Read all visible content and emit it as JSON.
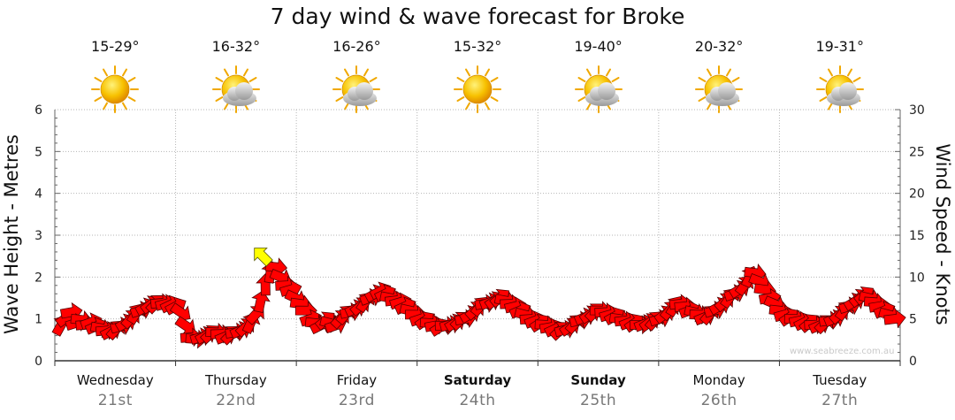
{
  "chart_data": {
    "type": "line",
    "title": "7 day wind & wave forecast for Broke",
    "left_axis": {
      "label": "Wave Height - Metres",
      "range": [
        0,
        6
      ],
      "ticks": [
        0,
        1,
        2,
        3,
        4,
        5,
        6
      ]
    },
    "right_axis": {
      "label": "Wind Speed - Knots",
      "range": [
        0,
        30
      ],
      "ticks": [
        0,
        5,
        10,
        15,
        20,
        25,
        30
      ]
    },
    "grid": true,
    "days": [
      {
        "day": "Wednesday",
        "date": "21st",
        "temp": "15-29°",
        "icon": "sun-icon",
        "bold": false
      },
      {
        "day": "Thursday",
        "date": "22nd",
        "temp": "16-32°",
        "icon": "sun-cloud-icon",
        "bold": false
      },
      {
        "day": "Friday",
        "date": "23rd",
        "temp": "16-26°",
        "icon": "sun-cloud-icon",
        "bold": false
      },
      {
        "day": "Saturday",
        "date": "24th",
        "temp": "15-32°",
        "icon": "sun-icon",
        "bold": true
      },
      {
        "day": "Sunday",
        "date": "25th",
        "temp": "19-40°",
        "icon": "sun-cloud-icon",
        "bold": true
      },
      {
        "day": "Monday",
        "date": "26th",
        "temp": "20-32°",
        "icon": "sun-cloud-icon",
        "bold": false
      },
      {
        "day": "Tuesday",
        "date": "27th",
        "temp": "19-31°",
        "icon": "sun-cloud-icon",
        "bold": false
      }
    ],
    "series": [
      {
        "name": "Wind Speed",
        "unit": "knots",
        "points_per_day": 24,
        "values": [
          4.2,
          5.1,
          5.8,
          4.5,
          4.9,
          4.3,
          4.6,
          4.1,
          3.9,
          3.6,
          3.5,
          3.7,
          4.1,
          4.5,
          5.0,
          5.6,
          6.0,
          6.4,
          6.7,
          6.8,
          6.9,
          6.8,
          6.7,
          6.5,
          5.8,
          4.2,
          2.8,
          2.6,
          2.8,
          3.0,
          3.2,
          3.4,
          3.2,
          2.9,
          3.1,
          3.4,
          3.6,
          4.0,
          4.5,
          5.5,
          7.0,
          9.0,
          10.5,
          11.2,
          10.0,
          9.0,
          8.5,
          7.5,
          6.8,
          6.0,
          5.0,
          4.5,
          4.2,
          4.8,
          4.5,
          4.2,
          5.0,
          5.5,
          5.8,
          6.2,
          6.5,
          7.0,
          7.5,
          8.0,
          8.3,
          8.0,
          7.5,
          7.2,
          7.0,
          6.5,
          6.0,
          5.5,
          5.0,
          4.8,
          4.5,
          4.2,
          4.0,
          4.2,
          4.3,
          4.5,
          4.8,
          5.0,
          5.5,
          6.0,
          6.5,
          6.8,
          7.0,
          7.2,
          7.5,
          7.2,
          6.8,
          6.5,
          6.0,
          5.5,
          5.0,
          4.8,
          4.5,
          4.3,
          4.0,
          3.8,
          3.6,
          3.7,
          4.0,
          4.4,
          4.8,
          5.2,
          5.5,
          5.8,
          6.0,
          5.8,
          5.5,
          5.3,
          5.0,
          4.8,
          4.6,
          4.5,
          4.3,
          4.4,
          4.6,
          4.8,
          5.0,
          5.5,
          6.0,
          6.5,
          6.8,
          6.5,
          6.0,
          5.8,
          5.5,
          5.2,
          5.5,
          6.0,
          6.5,
          7.0,
          7.5,
          8.0,
          8.5,
          9.0,
          10.0,
          10.5,
          9.5,
          8.5,
          7.5,
          6.8,
          6.0,
          5.5,
          5.2,
          5.0,
          4.8,
          4.6,
          4.5,
          4.3,
          4.2,
          4.4,
          4.8,
          5.0,
          5.5,
          6.0,
          6.5,
          7.0,
          7.5,
          7.8,
          7.5,
          7.0,
          6.5,
          6.0,
          5.5,
          5.0
        ],
        "color": "#ff0000"
      },
      {
        "name": "Wave Height",
        "unit": "metres",
        "values_note": "",
        "peak": {
          "value_knots": 12.5,
          "color": "#ffff00"
        }
      }
    ],
    "watermark": "www.seabreeze.com.au"
  }
}
